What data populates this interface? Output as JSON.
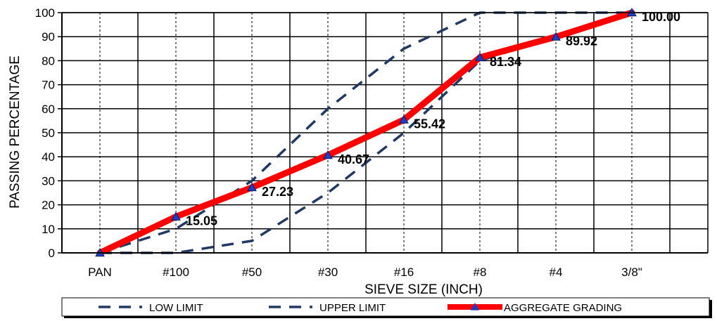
{
  "chart_data": {
    "type": "line",
    "title": "",
    "xlabel": "SIEVE SIZE (INCH)",
    "ylabel": "PASSING PERCENTAGE",
    "categories": [
      "PAN",
      "#100",
      "#50",
      "#30",
      "#16",
      "#8",
      "#4",
      "3/8\""
    ],
    "yticks": [
      "0",
      "10",
      "20",
      "30",
      "40",
      "50",
      "60",
      "70",
      "80",
      "90",
      "100"
    ],
    "ylim": [
      0,
      100
    ],
    "grid": true,
    "legend_position": "bottom",
    "series": [
      {
        "name": "LOW LIMIT",
        "style": "dashed",
        "color": "#1f3864",
        "values": [
          0,
          0,
          5,
          25,
          50,
          80,
          90,
          100
        ]
      },
      {
        "name": "UPPER LIMIT",
        "style": "dashed",
        "color": "#1f3864",
        "values": [
          0,
          10,
          30,
          60,
          85,
          100,
          100,
          100
        ]
      },
      {
        "name": "AGGREGATE GRADING",
        "style": "solid",
        "color": "#ff0000",
        "marker": "triangle",
        "marker_color": "#1f3fbf",
        "values": [
          0,
          15.05,
          27.23,
          40.67,
          55.42,
          81.34,
          89.92,
          100.0
        ],
        "labels": [
          "",
          "15.05",
          "27.23",
          "40.67",
          "55.42",
          "81.34",
          "89.92",
          "100.00"
        ]
      }
    ]
  }
}
